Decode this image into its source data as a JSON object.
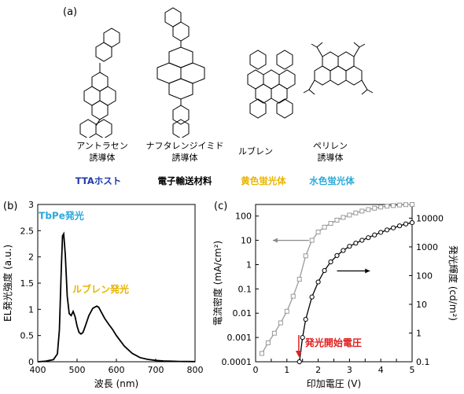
{
  "panel_a": {
    "label": "(a)",
    "molecules": [
      {
        "name_line1": "アントラセン",
        "name_line2": "誘導体",
        "category": "TTAホスト",
        "category_color": "#1e3aa8"
      },
      {
        "name_line1": "ナフタレンジイミド",
        "name_line2": "誘導体",
        "category": "電子輸送材料",
        "category_color": "#000000"
      },
      {
        "name_line1": "ルブレン",
        "name_line2": "",
        "category": "黄色蛍光体",
        "category_color": "#e8b400"
      },
      {
        "name_line1": "ペリレン",
        "name_line2": "誘導体",
        "category": "水色蛍光体",
        "category_color": "#2aa9d8"
      }
    ]
  },
  "chart_data": [
    {
      "panel_label": "(b)",
      "type": "line",
      "xlabel": "波長 (nm)",
      "ylabel": "EL発光強度 (a.u.)",
      "xlim": [
        400,
        800
      ],
      "ylim": [
        0,
        3
      ],
      "x_ticks": [
        "400",
        "500",
        "600",
        "700",
        "800"
      ],
      "y_ticks": [
        "0",
        "0.5",
        "1",
        "1.5",
        "2",
        "2.5",
        "3"
      ],
      "series": [
        {
          "color": "#000000",
          "x": [
            400,
            420,
            440,
            450,
            455,
            460,
            463,
            466,
            470,
            475,
            480,
            485,
            490,
            495,
            500,
            505,
            510,
            515,
            520,
            530,
            540,
            550,
            555,
            560,
            570,
            580,
            590,
            600,
            620,
            640,
            660,
            680,
            700,
            720,
            740,
            760,
            780,
            800
          ],
          "y": [
            0.0,
            0.01,
            0.04,
            0.15,
            0.6,
            1.8,
            2.4,
            2.44,
            2.05,
            1.25,
            0.92,
            0.88,
            0.96,
            0.86,
            0.68,
            0.56,
            0.53,
            0.56,
            0.66,
            0.88,
            1.02,
            1.06,
            1.04,
            0.97,
            0.83,
            0.72,
            0.62,
            0.5,
            0.3,
            0.16,
            0.08,
            0.045,
            0.025,
            0.015,
            0.01,
            0.006,
            0.004,
            0.003
          ]
        }
      ],
      "annotations": [
        {
          "text": "TbPe発光",
          "color": "#2aa9d8",
          "x": 460,
          "y": 2.78
        },
        {
          "text": "ルブレン発光",
          "color": "#e8b400",
          "x": 560,
          "y": 1.38
        }
      ]
    },
    {
      "panel_label": "(c)",
      "type": "line",
      "xlabel": "印加電圧 (V)",
      "ylabel_left": "電流密度 (mA/cm²)",
      "ylabel_right": "発光輝度 (cd/m²)",
      "xlim": [
        0,
        5
      ],
      "ylim_left": [
        0.0001,
        300
      ],
      "ylim_right": [
        0.1,
        30000
      ],
      "y_scale": "log",
      "x_ticks": [
        "0",
        "0.5",
        "1",
        "1.5",
        "2",
        "2.5",
        "3",
        "3.5",
        "4",
        "4.5",
        "5"
      ],
      "y_left_ticks": [
        "0.0001",
        "0.001",
        "0.01",
        "0.1",
        "1",
        "10",
        "100"
      ],
      "y_right_ticks": [
        "0.1",
        "1",
        "10",
        "100",
        "1000",
        "10000"
      ],
      "series": [
        {
          "axis": "left",
          "color": "#999999",
          "marker": "square",
          "x": [
            0.2,
            0.4,
            0.6,
            0.8,
            1.0,
            1.2,
            1.4,
            1.6,
            1.8,
            2.0,
            2.2,
            2.4,
            2.6,
            2.8,
            3.0,
            3.2,
            3.4,
            3.6,
            3.8,
            4.0,
            4.2,
            4.4,
            4.6,
            4.8,
            5.0
          ],
          "y": [
            0.00022,
            0.0006,
            0.0015,
            0.004,
            0.012,
            0.05,
            0.25,
            2.3,
            10,
            22,
            35,
            50,
            68,
            88,
            110,
            135,
            160,
            185,
            210,
            235,
            255,
            270,
            285,
            295,
            300
          ]
        },
        {
          "axis": "right",
          "color": "#000000",
          "marker": "circle",
          "x": [
            1.4,
            1.5,
            1.6,
            1.8,
            2.0,
            2.2,
            2.4,
            2.6,
            2.8,
            3.0,
            3.2,
            3.4,
            3.6,
            3.8,
            4.0,
            4.2,
            4.4,
            4.6,
            4.8,
            5.0
          ],
          "y": [
            0.1,
            0.7,
            3,
            18,
            60,
            150,
            300,
            500,
            750,
            1050,
            1350,
            1700,
            2100,
            2600,
            3200,
            3900,
            4600,
            5400,
            6300,
            7000
          ]
        }
      ],
      "annotations": [
        {
          "text": "発光開始電圧",
          "color": "#e02020",
          "x": 1.38
        }
      ]
    }
  ]
}
